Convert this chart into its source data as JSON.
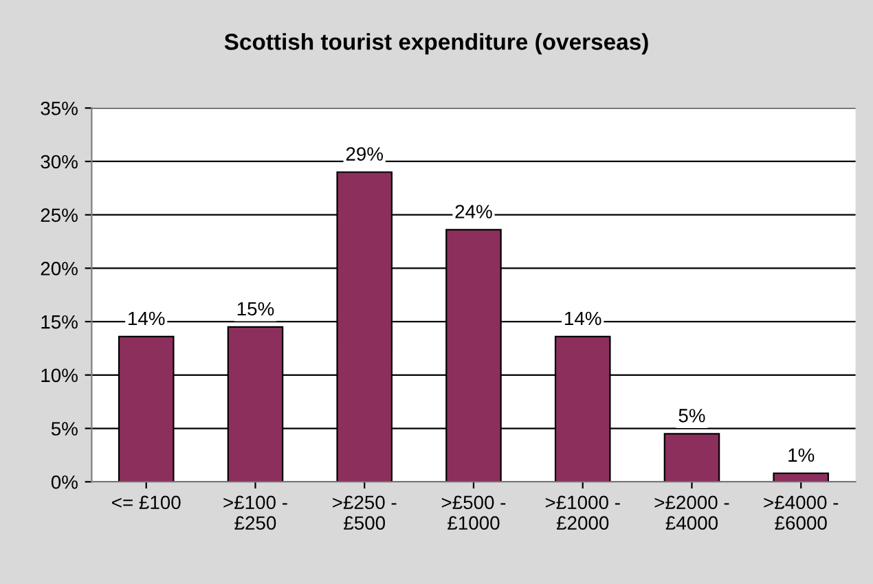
{
  "chart_data": {
    "type": "bar",
    "title": "Scottish tourist expenditure (overseas)",
    "categories": [
      "<= £100",
      ">£100 -\n£250",
      ">£250 -\n£500",
      ">£500 -\n£1000",
      ">£1000 -\n£2000",
      ">£2000 -\n£4000",
      ">£4000 -\n£6000"
    ],
    "values": [
      13.6,
      14.5,
      29.0,
      23.6,
      13.6,
      4.5,
      0.8
    ],
    "value_labels": [
      "14%",
      "15%",
      "29%",
      "24%",
      "14%",
      "5%",
      "1%"
    ],
    "color": "#8c2f5c",
    "ylim": [
      0,
      35
    ],
    "yticks": [
      {
        "value": 0,
        "label": "0%"
      },
      {
        "value": 5,
        "label": "5%"
      },
      {
        "value": 10,
        "label": "10%"
      },
      {
        "value": 15,
        "label": "15%"
      },
      {
        "value": 20,
        "label": "20%"
      },
      {
        "value": 25,
        "label": "25%"
      },
      {
        "value": 30,
        "label": "30%"
      },
      {
        "value": 35,
        "label": "35%"
      }
    ],
    "grid": "y"
  }
}
